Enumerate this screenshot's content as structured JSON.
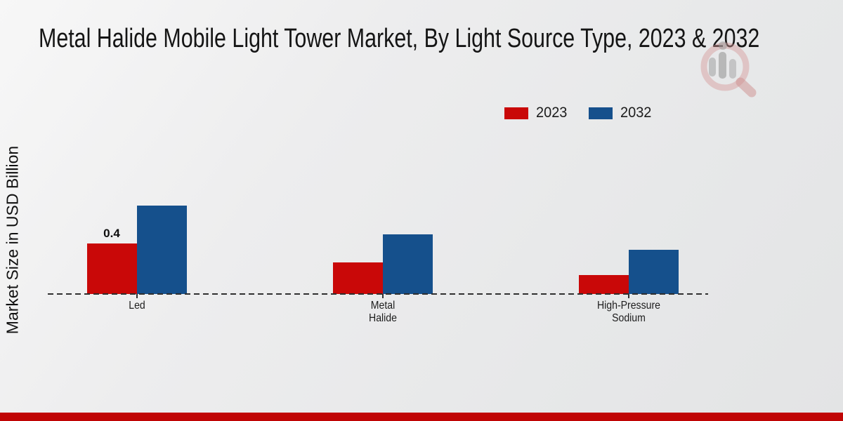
{
  "title": "Metal Halide Mobile Light Tower Market, By Light Source Type, 2023 & 2032",
  "y_axis_label": "Market Size in USD Billion",
  "legend": {
    "items": [
      {
        "label": "2023",
        "color": "#c90808"
      },
      {
        "label": "2032",
        "color": "#15508c"
      }
    ]
  },
  "chart_data": {
    "type": "bar",
    "categories": [
      "Led",
      "Metal Halide",
      "High-Pressure Sodium"
    ],
    "series": [
      {
        "name": "2023",
        "color": "#c90808",
        "values": [
          0.4,
          0.25,
          0.15
        ],
        "data_labels": [
          "0.4",
          "",
          ""
        ]
      },
      {
        "name": "2032",
        "color": "#15508c",
        "values": [
          0.7,
          0.47,
          0.35
        ],
        "data_labels": [
          "",
          "",
          ""
        ]
      }
    ],
    "ylabel": "Market Size in USD Billion",
    "xlabel": "",
    "ylim": [
      0,
      0.78
    ],
    "grid": false,
    "legend_position": "upper-right",
    "baseline_style": "dashed"
  },
  "footer": {
    "color": "#c00505"
  },
  "watermark_name": "market-research-magnifier-logo"
}
